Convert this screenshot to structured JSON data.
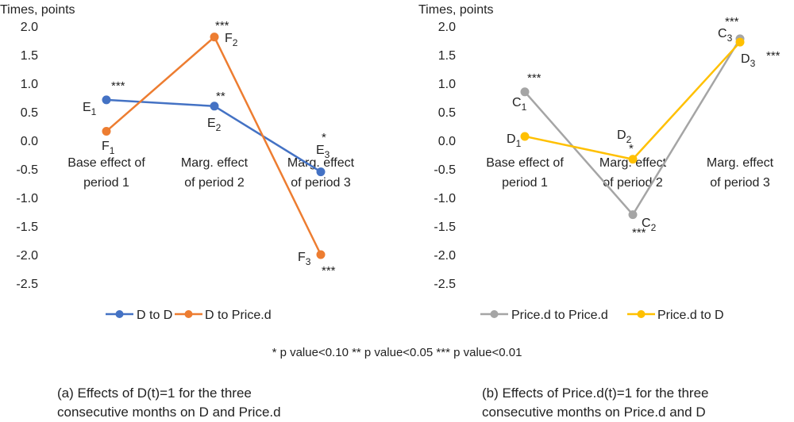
{
  "chart_data": [
    {
      "type": "line",
      "ylabel": "Times, points",
      "ylim": [
        -2.5,
        2.0
      ],
      "yticks": [
        "2.0",
        "1.5",
        "1.0",
        "0.5",
        "0.0",
        "-0.5",
        "-1.0",
        "-1.5",
        "-2.0",
        "-2.5"
      ],
      "categories": [
        [
          "Base effect of",
          "period 1"
        ],
        [
          "Marg. effect",
          "of period 2"
        ],
        [
          "Marg. effect",
          "of period 3"
        ]
      ],
      "series": [
        {
          "name": "D to D",
          "color": "#4472C4",
          "values": [
            0.71,
            0.6,
            -0.55
          ],
          "point_labels": [
            "E",
            "E",
            "E"
          ],
          "point_subs": [
            "1",
            "2",
            "3"
          ],
          "stars": [
            "***",
            "**",
            "*"
          ]
        },
        {
          "name": "D to Price.d",
          "color": "#ED7D31",
          "values": [
            0.16,
            1.81,
            -2.0
          ],
          "point_labels": [
            "F",
            "F",
            "F"
          ],
          "point_subs": [
            "1",
            "2",
            "3"
          ],
          "stars": [
            "",
            "***",
            "***"
          ]
        }
      ],
      "caption": [
        "(a) Effects of D(t)=1 for the three",
        "consecutive months on D and Price.d"
      ]
    },
    {
      "type": "line",
      "ylabel": "Times, points",
      "ylim": [
        -2.5,
        2.0
      ],
      "yticks": [
        "2.0",
        "1.5",
        "1.0",
        "0.5",
        "0.0",
        "-0.5",
        "-1.0",
        "-1.5",
        "-2.0",
        "-2.5"
      ],
      "categories": [
        [
          "Base effect of",
          "period 1"
        ],
        [
          "Marg. effect",
          "of period 2"
        ],
        [
          "Marg. effect",
          "of period 3"
        ]
      ],
      "series": [
        {
          "name": "Price.d to Price.d",
          "color": "#A5A5A5",
          "values": [
            0.85,
            -1.3,
            1.78
          ],
          "point_labels": [
            "C",
            "C",
            "C"
          ],
          "point_subs": [
            "1",
            "2",
            "3"
          ],
          "stars": [
            "***",
            "***",
            "***"
          ]
        },
        {
          "name": "Price.d to D",
          "color": "#FFC000",
          "values": [
            0.07,
            -0.33,
            1.72
          ],
          "point_labels": [
            "D",
            "D",
            "D"
          ],
          "point_subs": [
            "1",
            "2",
            "3"
          ],
          "stars": [
            "",
            "*",
            "***"
          ]
        }
      ],
      "caption": [
        "(b) Effects of Price.d(t)=1 for the three",
        "consecutive  months on Price.d and D"
      ]
    }
  ],
  "footnote": "* p value<0.10  ** p value<0.05  *** p value<0.01"
}
